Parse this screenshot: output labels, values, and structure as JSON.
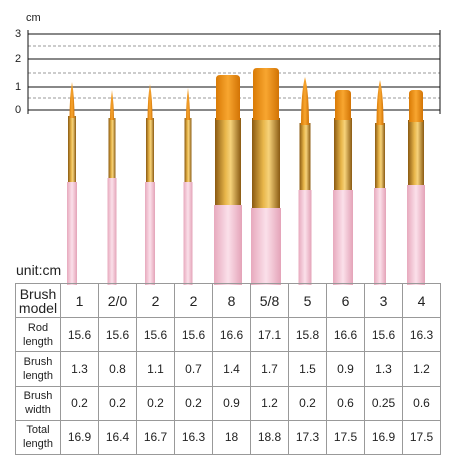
{
  "ruler": {
    "unit": "cm",
    "labels": [
      "3",
      "2",
      "1",
      "0"
    ]
  },
  "table": {
    "unit": "unit:cm",
    "rows": [
      [
        "Brush model",
        "1",
        "2/0",
        "2",
        "2",
        "8",
        "5/8",
        "5",
        "6",
        "3",
        "4"
      ],
      [
        "Rod length",
        "15.6",
        "15.6",
        "15.6",
        "15.6",
        "16.6",
        "17.1",
        "15.8",
        "16.6",
        "15.6",
        "16.3"
      ],
      [
        "Brush length",
        "1.3",
        "0.8",
        "1.1",
        "0.7",
        "1.4",
        "1.7",
        "1.5",
        "0.9",
        "1.3",
        "1.2"
      ],
      [
        "Brush width",
        "0.2",
        "0.2",
        "0.2",
        "0.2",
        "0.9",
        "1.2",
        "0.2",
        "0.6",
        "0.25",
        "0.6"
      ],
      [
        "Total length",
        "16.9",
        "16.4",
        "16.7",
        "16.3",
        "18",
        "18.8",
        "17.3",
        "17.5",
        "16.9",
        "17.5"
      ]
    ]
  }
}
